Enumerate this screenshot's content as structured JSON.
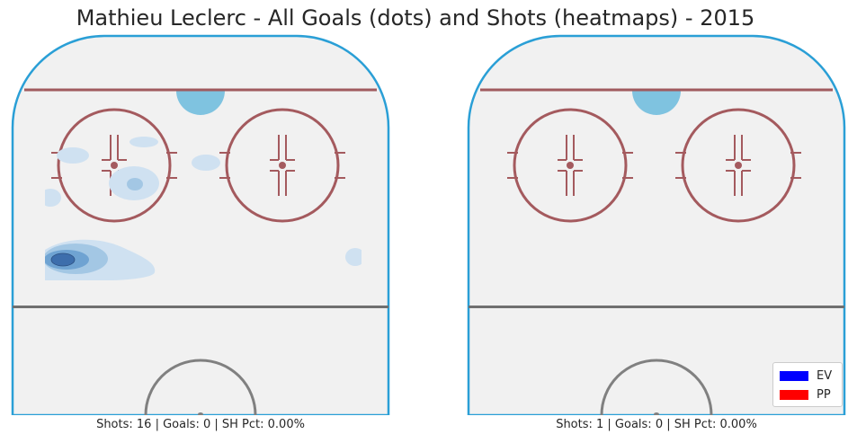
{
  "chart_data": {
    "type": "heatmap",
    "title": "Mathieu Leclerc - All Goals (dots) and Shots (heatmaps) - 2015",
    "legend": {
      "placement": "lower-right",
      "entries": [
        {
          "label": "EV",
          "color": "#0000ff"
        },
        {
          "label": "PP",
          "color": "#ff0000"
        }
      ]
    },
    "panels": [
      {
        "id": "left",
        "caption": "Shots: 16 | Goals: 0 | SH Pct: 0.00%",
        "shots": 16,
        "goals": 0,
        "sh_pct": "0.00%",
        "heatmap": "shot density concentrated along the left boards below the left face-off circle, with light zones near the left circle and the slot"
      },
      {
        "id": "right",
        "caption": "Shots: 1 | Goals: 0 | SH Pct: 0.00%",
        "shots": 1,
        "goals": 0,
        "sh_pct": "0.00%",
        "heatmap": "none"
      }
    ],
    "colors": {
      "boards": "#2a9fd6",
      "goal_line": "#a05a5e",
      "faceoff": "#a45a5e",
      "crease": "#7fc3e0",
      "blue_line": "#707070",
      "ice": "#f1f1f1",
      "heat_levels": [
        "#cfe1f1",
        "#a3c7e4",
        "#6fa3d2",
        "#3d6eac"
      ]
    }
  }
}
